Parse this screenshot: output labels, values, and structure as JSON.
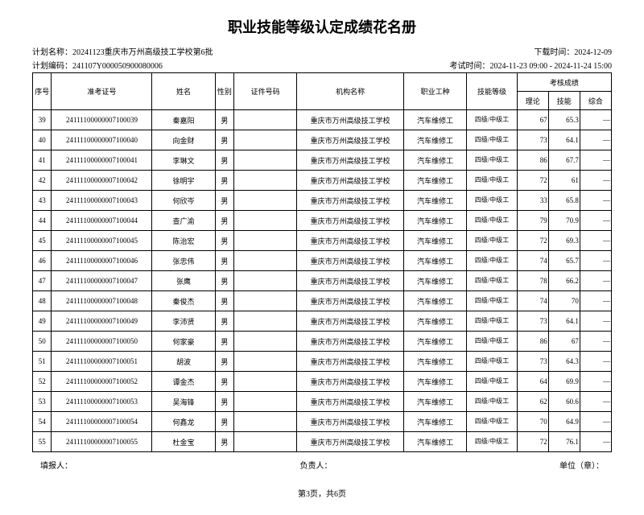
{
  "title": "职业技能等级认定成绩花名册",
  "meta": {
    "plan_name_label": "计划名称：",
    "plan_name": "20241123重庆市万州高级技工学校第6批",
    "download_time_label": "下载时间：",
    "download_time": "2024-12-09",
    "plan_code_label": "计划编码：",
    "plan_code": "241107Y000050900080006",
    "exam_time_label": "考试时间：",
    "exam_time": "2024-11-23 09:00 - 2024-11-24 15:00"
  },
  "headers": {
    "seq": "序号",
    "exam_no": "准考证号",
    "name": "姓名",
    "sex": "性别",
    "cert": "证件号码",
    "org": "机构名称",
    "job": "职业工种",
    "level": "技能等级",
    "score_group": "考核成绩",
    "theory": "理论",
    "skill": "技能",
    "comp": "综合"
  },
  "common": {
    "org": "重庆市万州高级技工学校",
    "job": "汽车维修工",
    "level": "四级/中级工",
    "sex": "男",
    "cert": "",
    "comp": "—"
  },
  "rows": [
    {
      "seq": "39",
      "exam": "24111100000007100039",
      "name": "秦嘉阳",
      "theory": "67",
      "skill": "65.3"
    },
    {
      "seq": "40",
      "exam": "24111100000007100040",
      "name": "向金财",
      "theory": "73",
      "skill": "64.1"
    },
    {
      "seq": "41",
      "exam": "24111100000007100041",
      "name": "李琳文",
      "theory": "86",
      "skill": "67.7"
    },
    {
      "seq": "42",
      "exam": "24111100000007100042",
      "name": "徐明宇",
      "theory": "72",
      "skill": "61"
    },
    {
      "seq": "43",
      "exam": "24111100000007100043",
      "name": "何欣岑",
      "theory": "33",
      "skill": "65.8"
    },
    {
      "seq": "44",
      "exam": "24111100000007100044",
      "name": "查广渝",
      "theory": "79",
      "skill": "70.9"
    },
    {
      "seq": "45",
      "exam": "24111100000007100045",
      "name": "陈治宏",
      "theory": "72",
      "skill": "69.3"
    },
    {
      "seq": "46",
      "exam": "24111100000007100046",
      "name": "张忠伟",
      "theory": "74",
      "skill": "65.7"
    },
    {
      "seq": "47",
      "exam": "24111100000007100047",
      "name": "张鹰",
      "theory": "78",
      "skill": "66.2"
    },
    {
      "seq": "48",
      "exam": "24111100000007100048",
      "name": "秦俊杰",
      "theory": "74",
      "skill": "70"
    },
    {
      "seq": "49",
      "exam": "24111100000007100049",
      "name": "李沛贤",
      "theory": "73",
      "skill": "64.1"
    },
    {
      "seq": "50",
      "exam": "24111100000007100050",
      "name": "何家豪",
      "theory": "86",
      "skill": "67"
    },
    {
      "seq": "51",
      "exam": "24111100000007100051",
      "name": "胡波",
      "theory": "73",
      "skill": "64.3"
    },
    {
      "seq": "52",
      "exam": "24111100000007100052",
      "name": "谭金杰",
      "theory": "64",
      "skill": "69.9"
    },
    {
      "seq": "53",
      "exam": "24111100000007100053",
      "name": "吴海锋",
      "theory": "62",
      "skill": "60.6"
    },
    {
      "seq": "54",
      "exam": "24111100000007100054",
      "name": "何鑫龙",
      "theory": "70",
      "skill": "64.9"
    },
    {
      "seq": "55",
      "exam": "24111100000007100055",
      "name": "杜金宝",
      "theory": "72",
      "skill": "76.1"
    }
  ],
  "footer": {
    "filler": "填报人：",
    "chief": "负责人：",
    "unit": "单位（章）：",
    "page": "第3页，共6页"
  }
}
